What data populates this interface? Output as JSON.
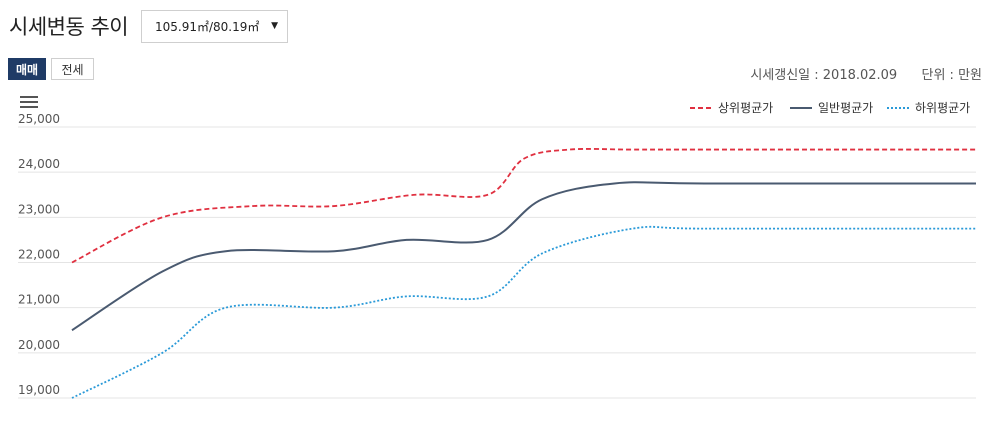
{
  "header": {
    "title": "시세변동 추이",
    "area_select": "105.91㎡/80.19㎡",
    "caret": "▼"
  },
  "tabs": [
    {
      "label": "매매",
      "active": true
    },
    {
      "label": "전세",
      "active": false
    }
  ],
  "update_info": {
    "date_text": "시세갱신일 : 2018.02.09",
    "unit_text": "단위 : 만원"
  },
  "legend": [
    {
      "label": "상위평균가",
      "color": "#e03040",
      "style": "dashed"
    },
    {
      "label": "일반평균가",
      "color": "#4a5a70",
      "style": "solid"
    },
    {
      "label": "하위평균가",
      "color": "#2a9ad8",
      "style": "dotted"
    }
  ],
  "chart_data": {
    "type": "line",
    "ylim": [
      19000,
      25000
    ],
    "yticks": [
      "19,000",
      "20,000",
      "21,000",
      "22,000",
      "23,000",
      "24,000",
      "25,000"
    ],
    "grid": true,
    "legend_position": "top-right",
    "series": [
      {
        "name": "상위평균가",
        "color": "#e03040",
        "style": "dashed",
        "x": [
          0,
          0.1,
          0.2,
          0.29,
          0.38,
          0.46,
          0.5,
          0.55,
          0.62,
          0.7,
          1.0
        ],
        "values": [
          22000,
          23000,
          23250,
          23250,
          23500,
          23500,
          24300,
          24500,
          24500,
          24500,
          24500
        ]
      },
      {
        "name": "일반평균가",
        "color": "#4a5a70",
        "style": "solid",
        "x": [
          0,
          0.1,
          0.17,
          0.29,
          0.37,
          0.46,
          0.52,
          0.6,
          0.7,
          1.0
        ],
        "values": [
          20500,
          21800,
          22250,
          22250,
          22500,
          22500,
          23400,
          23750,
          23750,
          23750
        ]
      },
      {
        "name": "하위평균가",
        "color": "#2a9ad8",
        "style": "dotted",
        "x": [
          0,
          0.1,
          0.17,
          0.29,
          0.37,
          0.46,
          0.52,
          0.62,
          0.7,
          1.0
        ],
        "values": [
          19000,
          20000,
          21000,
          21000,
          21250,
          21250,
          22200,
          22750,
          22750,
          22750
        ]
      }
    ]
  }
}
